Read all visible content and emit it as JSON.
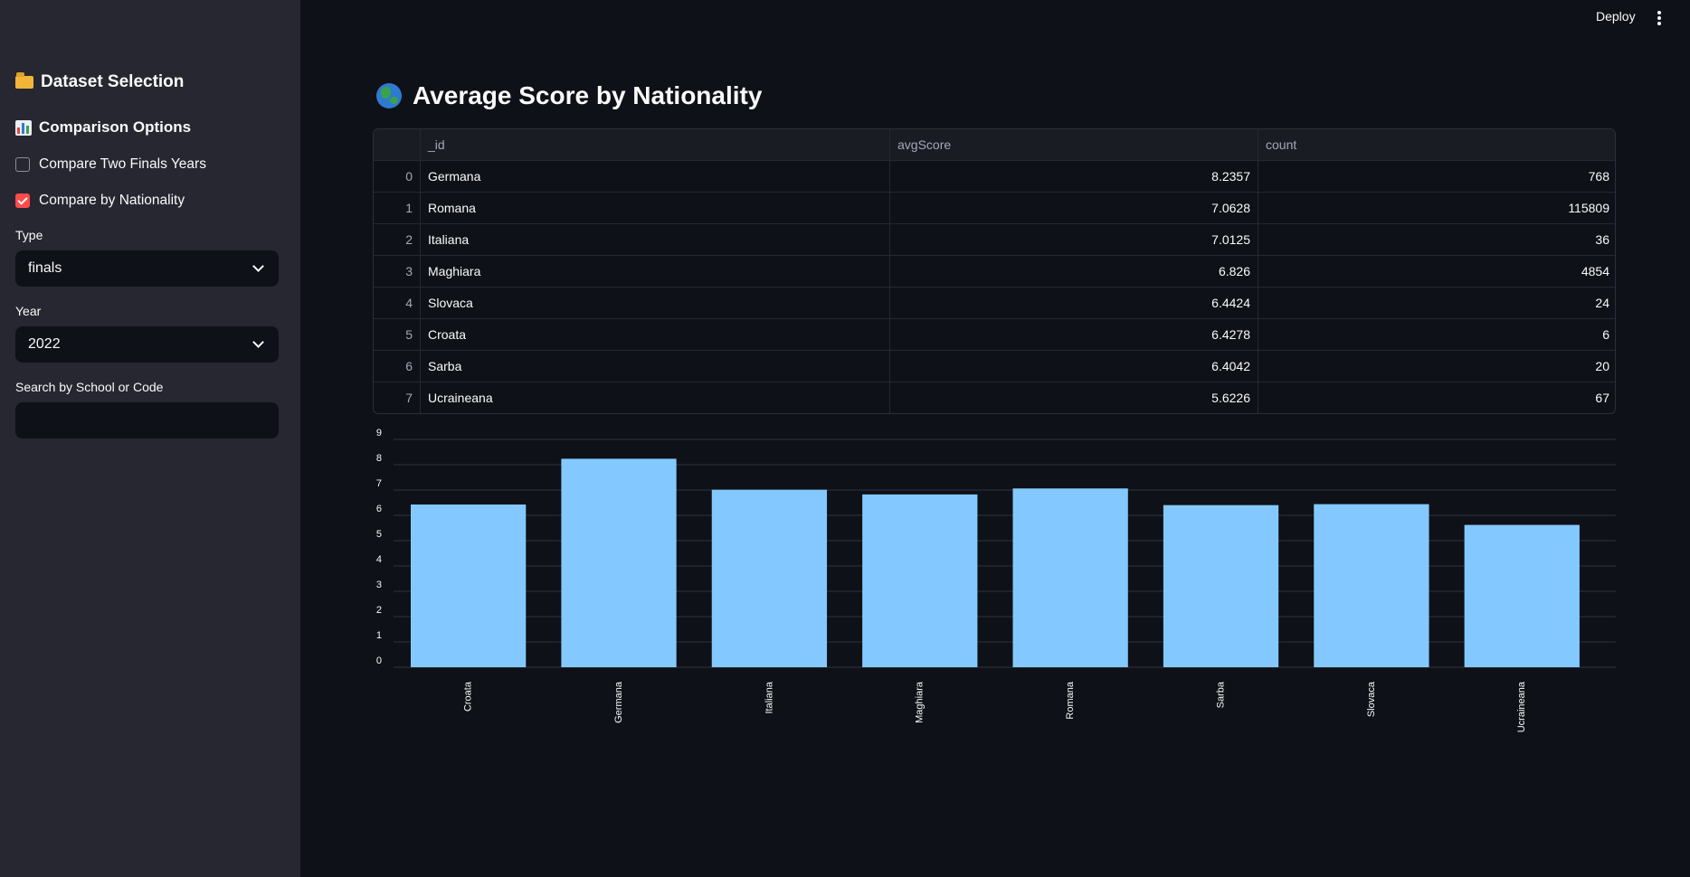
{
  "header": {
    "deploy_label": "Deploy"
  },
  "sidebar": {
    "dataset_section_title": "Dataset Selection",
    "comparison_section_title": "Comparison Options",
    "options": [
      {
        "label": "Compare Two Finals Years",
        "checked": false
      },
      {
        "label": "Compare by Nationality",
        "checked": true
      }
    ],
    "type_label": "Type",
    "type_value": "finals",
    "year_label": "Year",
    "year_value": "2022",
    "search_label": "Search by School or Code",
    "search_value": ""
  },
  "main": {
    "title": "Average Score by Nationality",
    "table": {
      "columns": [
        "_id",
        "avgScore",
        "count"
      ],
      "rows": [
        {
          "index": "0",
          "id": "Germana",
          "avgScore": "8.2357",
          "count": "768"
        },
        {
          "index": "1",
          "id": "Romana",
          "avgScore": "7.0628",
          "count": "115809"
        },
        {
          "index": "2",
          "id": "Italiana",
          "avgScore": "7.0125",
          "count": "36"
        },
        {
          "index": "3",
          "id": "Maghiara",
          "avgScore": "6.826",
          "count": "4854"
        },
        {
          "index": "4",
          "id": "Slovaca",
          "avgScore": "6.4424",
          "count": "24"
        },
        {
          "index": "5",
          "id": "Croata",
          "avgScore": "6.4278",
          "count": "6"
        },
        {
          "index": "6",
          "id": "Sarba",
          "avgScore": "6.4042",
          "count": "20"
        },
        {
          "index": "7",
          "id": "Ucraineana",
          "avgScore": "5.6226",
          "count": "67"
        }
      ]
    }
  },
  "chart_data": {
    "type": "bar",
    "categories": [
      "Croata",
      "Germana",
      "Italiana",
      "Maghiara",
      "Romana",
      "Sarba",
      "Slovaca",
      "Ucraineana"
    ],
    "values": [
      6.4278,
      8.2357,
      7.0125,
      6.826,
      7.0628,
      6.4042,
      6.4424,
      5.6226
    ],
    "yticks": [
      0,
      1,
      2,
      3,
      4,
      5,
      6,
      7,
      8,
      9
    ],
    "ylim": [
      0,
      9
    ],
    "grid": true,
    "bar_color": "#83c9ff",
    "grid_color": "#31333f"
  },
  "colors": {
    "background": "#0e1117",
    "sidebar": "#262730",
    "accent": "#ff4b4b"
  }
}
